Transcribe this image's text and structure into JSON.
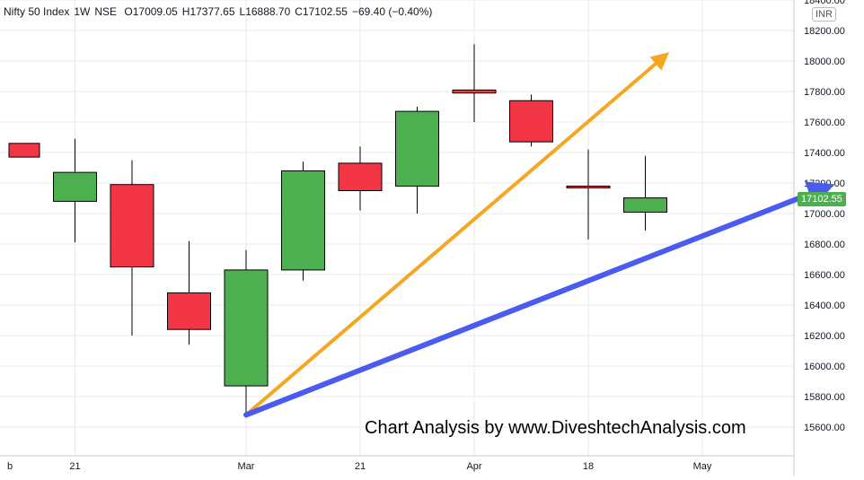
{
  "chart_data": {
    "type": "candlestick",
    "symbol": "Nifty 50 Index",
    "interval": "1W",
    "exchange": "NSE",
    "ohlc": {
      "O": "O17009.05",
      "H": "H17377.65",
      "L": "L16888.70",
      "C": "C17102.55",
      "change": "−69.40 (−0.40%)"
    },
    "currency": "INR",
    "last_price": "17102.55",
    "ylim": [
      15500,
      18450
    ],
    "y_ticks": [
      "15600.00",
      "15800.00",
      "16000.00",
      "16200.00",
      "16400.00",
      "16600.00",
      "16800.00",
      "17000.00",
      "17200.00",
      "17400.00",
      "17600.00",
      "17800.00",
      "18000.00",
      "18200.00",
      "18400.00"
    ],
    "x_ticks": [
      {
        "label": "b",
        "index": -1
      },
      {
        "label": "21",
        "index": 1
      },
      {
        "label": "Mar",
        "index": 4
      },
      {
        "label": "21",
        "index": 6
      },
      {
        "label": "Apr",
        "index": 8
      },
      {
        "label": "18",
        "index": 10
      },
      {
        "label": "May",
        "index": 12
      }
    ],
    "candles": [
      {
        "o": 17460,
        "h": 17460,
        "l": 17370,
        "c": 17370
      },
      {
        "o": 17080,
        "h": 17490,
        "l": 16810,
        "c": 17270
      },
      {
        "o": 17190,
        "h": 17350,
        "l": 16200,
        "c": 16650
      },
      {
        "o": 16480,
        "h": 16820,
        "l": 16140,
        "c": 16240
      },
      {
        "o": 15870,
        "h": 16760,
        "l": 15670,
        "c": 16630
      },
      {
        "o": 16630,
        "h": 17340,
        "l": 16560,
        "c": 17280
      },
      {
        "o": 17330,
        "h": 17440,
        "l": 17020,
        "c": 17150
      },
      {
        "o": 17180,
        "h": 17700,
        "l": 17000,
        "c": 17670
      },
      {
        "o": 17810,
        "h": 18110,
        "l": 17600,
        "c": 17790
      },
      {
        "o": 17740,
        "h": 17780,
        "l": 17440,
        "c": 17470
      },
      {
        "o": 17180,
        "h": 17420,
        "l": 16830,
        "c": 17170
      },
      {
        "o": 17009.05,
        "h": 17377.65,
        "l": 16888.7,
        "c": 17102.55
      }
    ],
    "arrows": [
      {
        "color": "#f5a623",
        "from": {
          "index": 4,
          "y": 15680
        },
        "to": {
          "index": 11.3,
          "y": 18020
        }
      },
      {
        "color": "#4a5cf0",
        "from": {
          "index": 4,
          "y": 15680
        },
        "to": {
          "index": 14.1,
          "y": 17160
        }
      }
    ],
    "watermark": "Chart Analysis by www.DiveshtechAnalysis.com",
    "colors": {
      "up": "#4caf50",
      "down": "#f23645",
      "grid": "#e8eaee",
      "axis": "#c5c8ce"
    }
  }
}
